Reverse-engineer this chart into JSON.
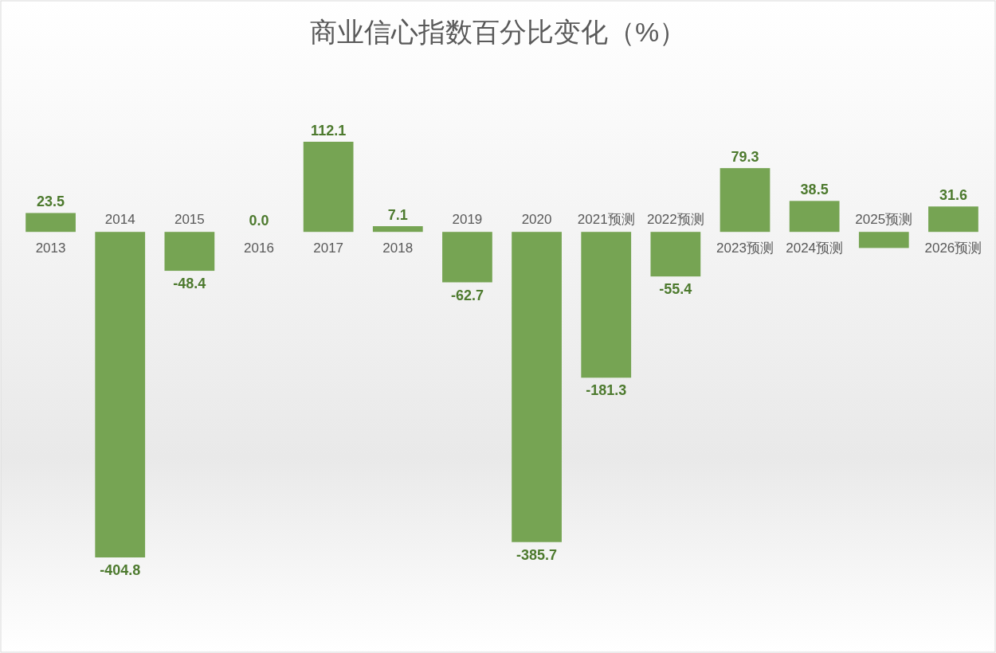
{
  "chart_data": {
    "type": "bar",
    "title": "商业信心指数百分比变化（%）",
    "categories": [
      "2013",
      "2014",
      "2015",
      "2016",
      "2017",
      "2018",
      "2019",
      "2020",
      "2021预测",
      "2022预测",
      "2023预测",
      "2024预测",
      "2025预测",
      "2026预测"
    ],
    "values": [
      23.5,
      -404.8,
      -48.4,
      0.0,
      112.1,
      7.1,
      -62.7,
      -385.7,
      -181.3,
      -55.4,
      79.3,
      38.5,
      -20,
      31.6
    ],
    "value_labels": [
      "23.5",
      "-404.8",
      "-48.4",
      "0.0",
      "112.1",
      "7.1",
      "-62.7",
      "-385.7",
      "-181.3",
      "-55.4",
      "79.3",
      "38.5",
      null,
      "31.6"
    ],
    "color": "#76a453",
    "grid": false
  }
}
